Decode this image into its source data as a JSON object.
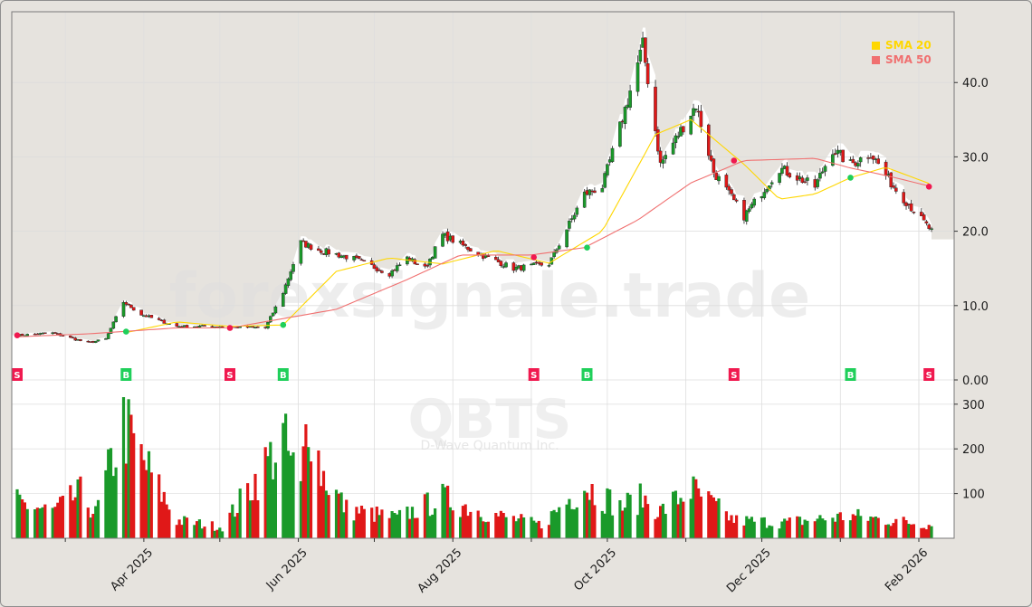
{
  "watermark": {
    "site": "forexsignale.trade",
    "ticker": "QBTS",
    "company": "D-Wave Quantum Inc."
  },
  "chart_data": {
    "type": "candlestick",
    "date_range": [
      "2025-02-10",
      "2026-02-06"
    ],
    "price_axis": {
      "ylim": [
        0,
        48
      ],
      "ticks": [
        "0.00",
        "10.0",
        "20.0",
        "30.0",
        "40.0"
      ]
    },
    "volume_axis": {
      "ylim": [
        0,
        310
      ],
      "ticks": [
        "100",
        "200",
        "300"
      ]
    },
    "x_tick_labels": [
      "Apr 2025",
      "Jun 2025",
      "Aug 2025",
      "Oct 2025",
      "Dec 2025",
      "Feb 2026"
    ],
    "x_tick_dates": [
      "2025-04-01",
      "2025-06-01",
      "2025-08-01",
      "2025-10-01",
      "2025-12-01",
      "2026-02-01"
    ],
    "legend": [
      {
        "label": "SMA 20",
        "color": "#ffd700"
      },
      {
        "label": "SMA 50",
        "color": "#f07070"
      }
    ],
    "price_keypoints": [
      [
        "2025-02-10",
        6.0
      ],
      [
        "2025-02-24",
        6.3
      ],
      [
        "2025-03-10",
        5.0
      ],
      [
        "2025-03-17",
        5.5
      ],
      [
        "2025-03-24",
        10.5
      ],
      [
        "2025-03-31",
        8.8
      ],
      [
        "2025-04-14",
        7.2
      ],
      [
        "2025-04-28",
        7.2
      ],
      [
        "2025-05-19",
        7.0
      ],
      [
        "2025-05-26",
        11.8
      ],
      [
        "2025-06-02",
        18.5
      ],
      [
        "2025-06-09",
        17.5
      ],
      [
        "2025-06-23",
        16.3
      ],
      [
        "2025-07-07",
        14.3
      ],
      [
        "2025-07-14",
        16.4
      ],
      [
        "2025-07-21",
        15.0
      ],
      [
        "2025-07-28",
        19.5
      ],
      [
        "2025-08-11",
        17.0
      ],
      [
        "2025-08-25",
        15.0
      ],
      [
        "2025-09-08",
        15.6
      ],
      [
        "2025-09-22",
        25.0
      ],
      [
        "2025-09-29",
        26.0
      ],
      [
        "2025-10-06",
        34.0
      ],
      [
        "2025-10-15",
        45.0
      ],
      [
        "2025-10-22",
        29.0
      ],
      [
        "2025-11-05",
        37.0
      ],
      [
        "2025-11-12",
        28.0
      ],
      [
        "2025-11-24",
        22.0
      ],
      [
        "2025-12-08",
        28.5
      ],
      [
        "2025-12-22",
        26.0
      ],
      [
        "2025-12-29",
        31.0
      ],
      [
        "2026-01-05",
        29.0
      ],
      [
        "2026-01-13",
        30.5
      ],
      [
        "2026-01-22",
        26.0
      ],
      [
        "2026-02-06",
        20.0
      ]
    ],
    "volume_keypoints": [
      [
        "2025-02-10",
        80
      ],
      [
        "2025-02-24",
        60
      ],
      [
        "2025-03-07",
        100
      ],
      [
        "2025-03-13",
        55
      ],
      [
        "2025-03-24",
        255
      ],
      [
        "2025-03-31",
        180
      ],
      [
        "2025-04-14",
        40
      ],
      [
        "2025-05-02",
        25
      ],
      [
        "2025-05-26",
        220
      ],
      [
        "2025-06-02",
        110
      ],
      [
        "2025-06-05",
        300
      ],
      [
        "2025-06-10",
        150
      ],
      [
        "2025-06-20",
        65
      ],
      [
        "2025-07-10",
        45
      ],
      [
        "2025-07-28",
        90
      ],
      [
        "2025-08-15",
        55
      ],
      [
        "2025-09-05",
        30
      ],
      [
        "2025-09-22",
        120
      ],
      [
        "2025-10-06",
        70
      ],
      [
        "2025-10-15",
        90
      ],
      [
        "2025-10-22",
        60
      ],
      [
        "2025-11-03",
        110
      ],
      [
        "2025-11-20",
        40
      ],
      [
        "2025-12-10",
        35
      ],
      [
        "2026-01-05",
        50
      ],
      [
        "2026-02-06",
        30
      ]
    ],
    "series": [
      {
        "name": "SMA 20",
        "color": "#ffd700",
        "values": [
          [
            "2025-03-24",
            6.3
          ],
          [
            "2025-04-14",
            7.8
          ],
          [
            "2025-05-05",
            7.2
          ],
          [
            "2025-05-26",
            7.4
          ],
          [
            "2025-06-16",
            14.6
          ],
          [
            "2025-07-07",
            16.4
          ],
          [
            "2025-07-28",
            15.6
          ],
          [
            "2025-08-18",
            17.4
          ],
          [
            "2025-09-08",
            15.7
          ],
          [
            "2025-09-29",
            20.0
          ],
          [
            "2025-10-20",
            33.0
          ],
          [
            "2025-11-03",
            35.0
          ],
          [
            "2025-11-24",
            29.0
          ],
          [
            "2025-12-08",
            24.3
          ],
          [
            "2025-12-22",
            25.0
          ],
          [
            "2026-01-05",
            27.2
          ],
          [
            "2026-01-19",
            28.6
          ],
          [
            "2026-02-06",
            26.3
          ]
        ]
      },
      {
        "name": "SMA 50",
        "color": "#f07070",
        "values": [
          [
            "2025-02-10",
            5.8
          ],
          [
            "2025-03-10",
            6.2
          ],
          [
            "2025-04-14",
            7.0
          ],
          [
            "2025-05-05",
            7.0
          ],
          [
            "2025-06-16",
            9.5
          ],
          [
            "2025-07-14",
            13.5
          ],
          [
            "2025-08-04",
            16.8
          ],
          [
            "2025-09-01",
            16.8
          ],
          [
            "2025-09-22",
            17.8
          ],
          [
            "2025-10-13",
            21.5
          ],
          [
            "2025-11-03",
            26.5
          ],
          [
            "2025-11-24",
            29.5
          ],
          [
            "2025-12-22",
            29.8
          ],
          [
            "2026-01-05",
            28.5
          ],
          [
            "2026-01-19",
            27.5
          ],
          [
            "2026-02-06",
            26.0
          ]
        ]
      }
    ],
    "signals": [
      {
        "date": "2025-02-10",
        "type": "S",
        "price": 6.0
      },
      {
        "date": "2025-03-25",
        "type": "B",
        "price": 6.5
      },
      {
        "date": "2025-05-05",
        "type": "S",
        "price": 7.0
      },
      {
        "date": "2025-05-26",
        "type": "B",
        "price": 7.4
      },
      {
        "date": "2025-09-02",
        "type": "S",
        "price": 16.5
      },
      {
        "date": "2025-09-23",
        "type": "B",
        "price": 17.8
      },
      {
        "date": "2025-11-20",
        "type": "S",
        "price": 29.5
      },
      {
        "date": "2026-01-05",
        "type": "B",
        "price": 27.2
      },
      {
        "date": "2026-02-05",
        "type": "S",
        "price": 26.0
      }
    ],
    "colors": {
      "up": "#1a9a2a",
      "down": "#e01818",
      "buy": "#1fcf5a",
      "sell": "#f0194f"
    },
    "grid": true
  }
}
